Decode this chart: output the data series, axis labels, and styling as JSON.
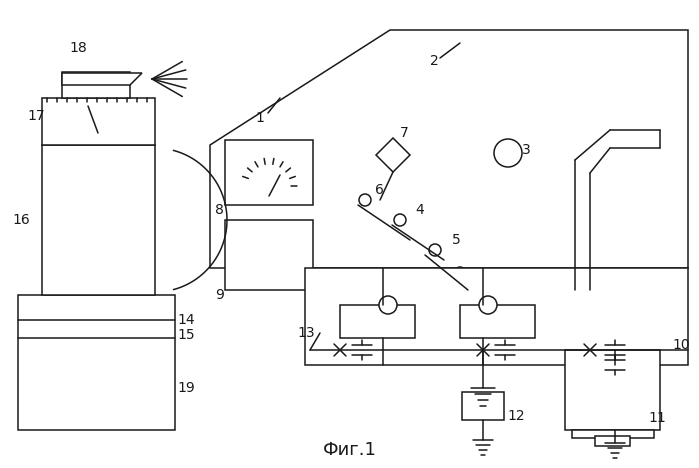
{
  "title": "Фиг.1",
  "bg_color": "#ffffff",
  "line_color": "#1a1a1a",
  "title_fontsize": 13,
  "label_fontsize": 10
}
